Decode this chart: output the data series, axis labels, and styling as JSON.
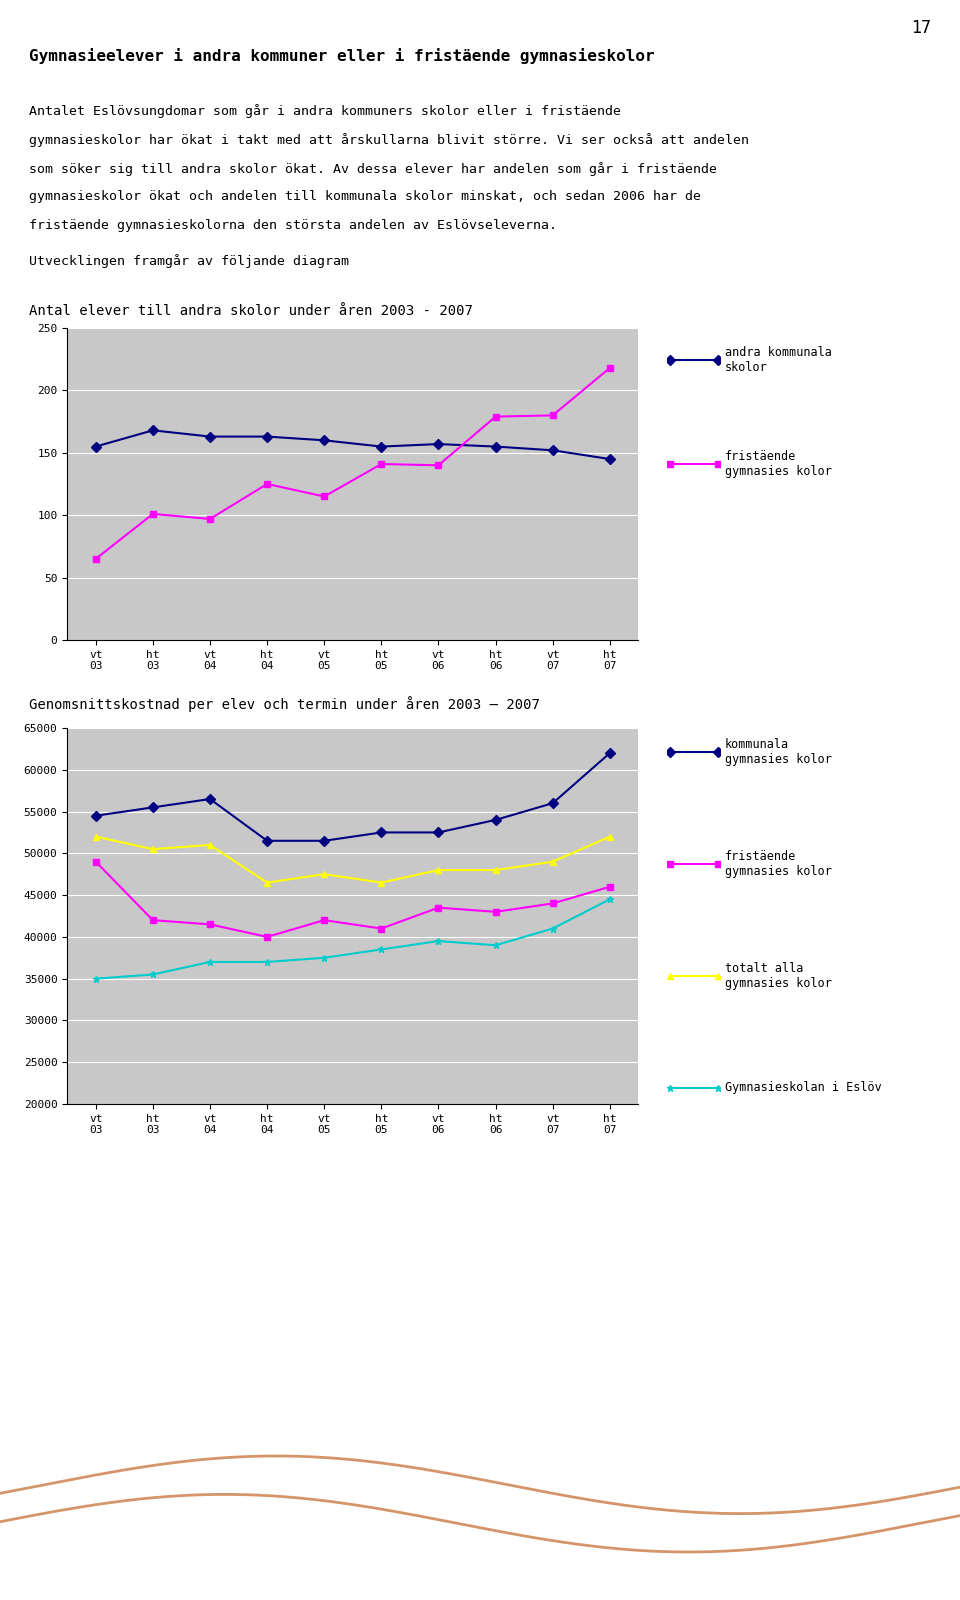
{
  "page_number": "17",
  "title_bold": "Gymnasieelever i andra kommuner eller i fristäende gymnasieskolor",
  "body_lines": [
    "Antalet Eslövsungdomar som går i andra kommuners skolor eller i fristäende",
    "gymnasieskolor har ökat i takt med att årskullarna blivit större. Vi ser också att andelen",
    "som söker sig till andra skolor ökat. Av dessa elever har andelen som går i fristäende",
    "gymnasieskolor ökat och andelen till kommunala skolor minskat, och sedan 2006 har de",
    "fristäende gymnasieskolorna den största andelen av Eslövseleverna.",
    "Utvecklingen framgår av följande diagram"
  ],
  "chart1_title": "Antal elever till andra skolor under åren 2003 - 2007",
  "chart1_xlabels": [
    "vt\n03",
    "ht\n03",
    "vt\n04",
    "ht\n04",
    "vt\n05",
    "ht\n05",
    "vt\n06",
    "ht\n06",
    "vt\n07",
    "ht\n07"
  ],
  "chart1_ylim": [
    0,
    250
  ],
  "chart1_yticks": [
    0,
    50,
    100,
    150,
    200,
    250
  ],
  "chart1_series": [
    {
      "name": "andra kommunala\nskolor",
      "color": "#000080",
      "marker": "D",
      "values": [
        155,
        168,
        163,
        163,
        160,
        155,
        157,
        155,
        152,
        145
      ]
    },
    {
      "name": "fristäende\ngymnasies kolor",
      "color": "#FF00FF",
      "marker": "s",
      "values": [
        65,
        101,
        97,
        125,
        115,
        141,
        140,
        179,
        180,
        218
      ]
    }
  ],
  "chart1_bg": "#C8C8C8",
  "chart2_title": "Genomsnittskostnad per elev och termin under åren 2003 – 2007",
  "chart2_xlabels": [
    "vt\n03",
    "ht\n03",
    "vt\n04",
    "ht\n04",
    "vt\n05",
    "ht\n05",
    "vt\n06",
    "ht\n06",
    "vt\n07",
    "ht\n07"
  ],
  "chart2_ylim": [
    20000,
    65000
  ],
  "chart2_yticks": [
    20000,
    25000,
    30000,
    35000,
    40000,
    45000,
    50000,
    55000,
    60000,
    65000
  ],
  "chart2_series": [
    {
      "name": "kommunala\ngymnasies kolor",
      "color": "#000080",
      "marker": "D",
      "values": [
        54500,
        55500,
        56500,
        51500,
        51500,
        52500,
        52500,
        54000,
        56000,
        62000
      ]
    },
    {
      "name": "fristäende\ngymnasies kolor",
      "color": "#FF00FF",
      "marker": "s",
      "values": [
        49000,
        42000,
        41500,
        40000,
        42000,
        41000,
        43500,
        43000,
        44000,
        46000
      ]
    },
    {
      "name": "totalt alla\ngymnasies kolor",
      "color": "#FFFF00",
      "marker": "^",
      "values": [
        52000,
        50500,
        51000,
        46500,
        47500,
        46500,
        48000,
        48000,
        49000,
        52000
      ]
    },
    {
      "name": "Gymnasieskolan i Eslöv",
      "color": "#00CCCC",
      "marker": "*",
      "values": [
        35000,
        35500,
        37000,
        37000,
        37500,
        38500,
        39500,
        39000,
        41000,
        44500
      ]
    }
  ],
  "chart2_bg": "#C8C8C8",
  "bg_color": "#FFFFFF",
  "wave_color": "#D4956A"
}
